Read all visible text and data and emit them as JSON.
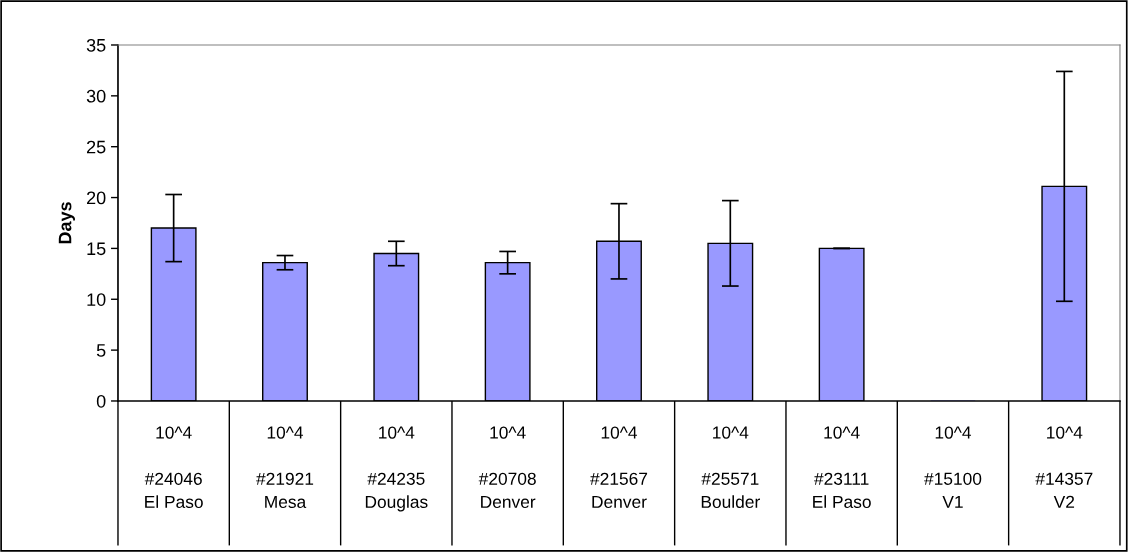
{
  "chart_data": {
    "type": "bar",
    "ylabel": "Days",
    "categories": [
      "10^4\n\n#24046\nEl Paso",
      "10^4\n\n#21921\nMesa",
      "10^4\n\n#24235\nDouglas",
      "10^4\n\n#20708\nDenver",
      "10^4\n\n#21567\nDenver",
      "10^4\n\n#25571\nBoulder",
      "10^4\n\n#23111\nEl Paso",
      "10^4\n\n#15100\nV1",
      "10^4\n\n#14357\nV2"
    ],
    "values": [
      17.0,
      13.6,
      14.5,
      13.6,
      15.7,
      15.5,
      15.0,
      0,
      21.1
    ],
    "errors": [
      3.3,
      0.7,
      1.2,
      1.1,
      3.7,
      4.2,
      0,
      null,
      11.3
    ],
    "color": "#9999ff",
    "ylim": [
      0,
      35
    ],
    "yticks": [
      0,
      5,
      10,
      15,
      20,
      25,
      30,
      35
    ],
    "grid": false,
    "legend": false
  }
}
